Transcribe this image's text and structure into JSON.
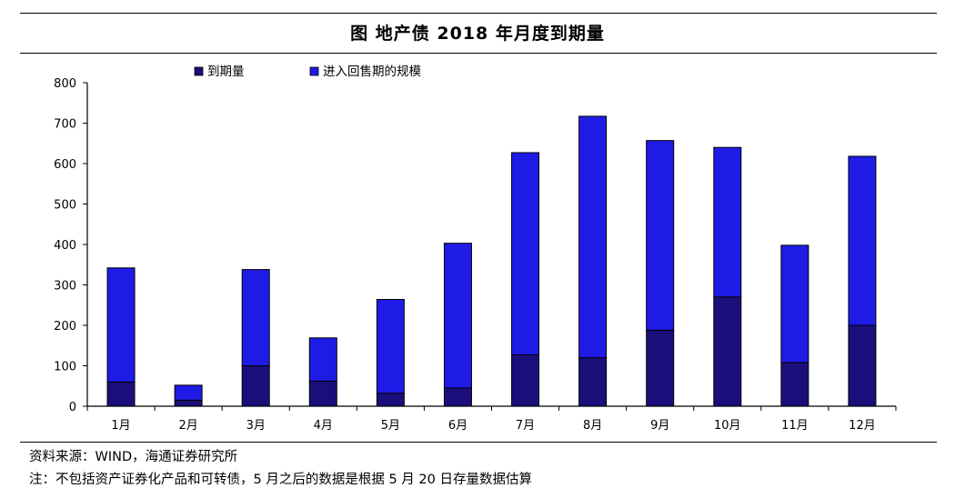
{
  "title": "图 地产债 2018 年月度到期量",
  "source": "资料来源：WIND，海通证券研究所",
  "note": "注：不包括资产证券化产品和可转债，5 月之后的数据是根据 5 月 20 日存量数据估算",
  "colors": {
    "maturity": "#1a0f7a",
    "putback": "#1f1be6",
    "axis": "#000000"
  },
  "chart_data": {
    "type": "bar",
    "stacked": true,
    "title": "图 地产债 2018 年月度到期量",
    "categories": [
      "1月",
      "2月",
      "3月",
      "4月",
      "5月",
      "6月",
      "7月",
      "8月",
      "9月",
      "10月",
      "11月",
      "12月"
    ],
    "series": [
      {
        "name": "到期量",
        "values": [
          60,
          15,
          100,
          62,
          32,
          45,
          127,
          120,
          188,
          270,
          108,
          200
        ]
      },
      {
        "name": "进入回售期的规模",
        "values": [
          282,
          37,
          238,
          107,
          232,
          358,
          500,
          597,
          469,
          370,
          290,
          418
        ]
      }
    ],
    "yticks": [
      0,
      100,
      200,
      300,
      400,
      500,
      600,
      700,
      800
    ],
    "ylim": [
      0,
      800
    ],
    "grid": false,
    "legend_position": "top"
  }
}
